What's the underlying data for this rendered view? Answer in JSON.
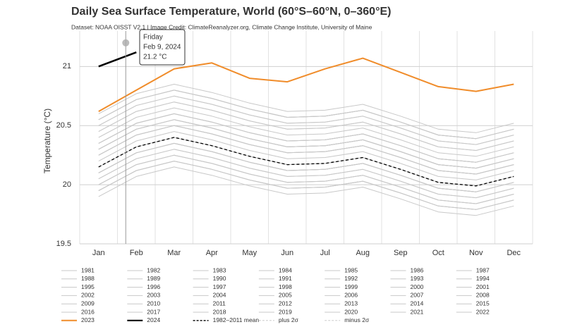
{
  "chart_data": {
    "type": "line",
    "title": "Daily Sea Surface Temperature, World (60°S–60°N, 0–360°E)",
    "subtitle": "Dataset: NOAA OISST V2.1 | Image Credit: ClimateReanalyzer.org, Climate Change Institute, University of Maine",
    "y_label": "Temperature (°C)",
    "categories": [
      "Jan",
      "Feb",
      "Mar",
      "Apr",
      "May",
      "Jun",
      "Jul",
      "Aug",
      "Sep",
      "Oct",
      "Nov",
      "Dec"
    ],
    "ylim": [
      19.5,
      21.3
    ],
    "yticks": [
      19.5,
      20,
      20.5,
      21
    ],
    "grid": true,
    "tooltip": {
      "weekday": "Friday",
      "date": "Feb 9, 2024",
      "value": 21.2,
      "value_label": "21.2 °C"
    },
    "series": [
      {
        "name": "1981",
        "color": "#c8c8c8",
        "values": [
          19.95,
          20.12,
          20.2,
          20.13,
          20.04,
          19.97,
          19.98,
          20.03,
          19.93,
          19.82,
          19.79,
          19.87
        ]
      },
      {
        "name": "1982",
        "color": "#c8c8c8",
        "values": [
          19.95,
          20.12,
          20.2,
          20.13,
          20.04,
          19.97,
          19.98,
          20.03,
          19.93,
          19.82,
          19.79,
          19.87
        ]
      },
      {
        "name": "1983",
        "color": "#c8c8c8",
        "values": [
          20.05,
          20.22,
          20.3,
          20.23,
          20.14,
          20.07,
          20.08,
          20.13,
          20.03,
          19.92,
          19.89,
          19.97
        ]
      },
      {
        "name": "1984",
        "color": "#c8c8c8",
        "values": [
          19.95,
          20.12,
          20.2,
          20.13,
          20.04,
          19.97,
          19.98,
          20.03,
          19.93,
          19.82,
          19.79,
          19.87
        ]
      },
      {
        "name": "1985",
        "color": "#c8c8c8",
        "values": [
          19.9,
          20.07,
          20.15,
          20.08,
          19.99,
          19.92,
          19.93,
          19.98,
          19.88,
          19.77,
          19.74,
          19.82
        ]
      },
      {
        "name": "1986",
        "color": "#c8c8c8",
        "values": [
          20.0,
          20.17,
          20.25,
          20.18,
          20.09,
          20.02,
          20.03,
          20.08,
          19.98,
          19.87,
          19.84,
          19.92
        ]
      },
      {
        "name": "1987",
        "color": "#c8c8c8",
        "values": [
          20.15,
          20.32,
          20.4,
          20.33,
          20.24,
          20.17,
          20.18,
          20.23,
          20.13,
          20.02,
          19.99,
          20.07
        ]
      },
      {
        "name": "1988",
        "color": "#c8c8c8",
        "values": [
          20.1,
          20.27,
          20.35,
          20.28,
          20.19,
          20.12,
          20.13,
          20.18,
          20.08,
          19.97,
          19.94,
          20.02
        ]
      },
      {
        "name": "1989",
        "color": "#c8c8c8",
        "values": [
          20.0,
          20.17,
          20.25,
          20.18,
          20.09,
          20.02,
          20.03,
          20.08,
          19.98,
          19.87,
          19.84,
          19.92
        ]
      },
      {
        "name": "1990",
        "color": "#c8c8c8",
        "values": [
          20.1,
          20.27,
          20.35,
          20.28,
          20.19,
          20.12,
          20.13,
          20.18,
          20.08,
          19.97,
          19.94,
          20.02
        ]
      },
      {
        "name": "1991",
        "color": "#c8c8c8",
        "values": [
          20.1,
          20.27,
          20.35,
          20.28,
          20.19,
          20.12,
          20.13,
          20.18,
          20.08,
          19.97,
          19.94,
          20.02
        ]
      },
      {
        "name": "1992",
        "color": "#c8c8c8",
        "values": [
          20.0,
          20.17,
          20.25,
          20.18,
          20.09,
          20.02,
          20.03,
          20.08,
          19.98,
          19.87,
          19.84,
          19.92
        ]
      },
      {
        "name": "1993",
        "color": "#c8c8c8",
        "values": [
          20.05,
          20.22,
          20.3,
          20.23,
          20.14,
          20.07,
          20.08,
          20.13,
          20.03,
          19.92,
          19.89,
          19.97
        ]
      },
      {
        "name": "1994",
        "color": "#c8c8c8",
        "values": [
          20.1,
          20.27,
          20.35,
          20.28,
          20.19,
          20.12,
          20.13,
          20.18,
          20.08,
          19.97,
          19.94,
          20.02
        ]
      },
      {
        "name": "1995",
        "color": "#c8c8c8",
        "values": [
          20.15,
          20.32,
          20.4,
          20.33,
          20.24,
          20.17,
          20.18,
          20.23,
          20.13,
          20.02,
          19.99,
          20.07
        ]
      },
      {
        "name": "1996",
        "color": "#c8c8c8",
        "values": [
          20.1,
          20.27,
          20.35,
          20.28,
          20.19,
          20.12,
          20.13,
          20.18,
          20.08,
          19.97,
          19.94,
          20.02
        ]
      },
      {
        "name": "1997",
        "color": "#c8c8c8",
        "values": [
          20.25,
          20.42,
          20.5,
          20.43,
          20.34,
          20.27,
          20.28,
          20.33,
          20.23,
          20.12,
          20.09,
          20.17
        ]
      },
      {
        "name": "1998",
        "color": "#c8c8c8",
        "values": [
          20.3,
          20.47,
          20.55,
          20.48,
          20.39,
          20.32,
          20.33,
          20.38,
          20.28,
          20.17,
          20.14,
          20.22
        ]
      },
      {
        "name": "1999",
        "color": "#c8c8c8",
        "values": [
          20.15,
          20.32,
          20.4,
          20.33,
          20.24,
          20.17,
          20.18,
          20.23,
          20.13,
          20.02,
          19.99,
          20.07
        ]
      },
      {
        "name": "2000",
        "color": "#c8c8c8",
        "values": [
          20.15,
          20.32,
          20.4,
          20.33,
          20.24,
          20.17,
          20.18,
          20.23,
          20.13,
          20.02,
          19.99,
          20.07
        ]
      },
      {
        "name": "2001",
        "color": "#c8c8c8",
        "values": [
          20.25,
          20.42,
          20.5,
          20.43,
          20.34,
          20.27,
          20.28,
          20.33,
          20.23,
          20.12,
          20.09,
          20.17
        ]
      },
      {
        "name": "2002",
        "color": "#c8c8c8",
        "values": [
          20.3,
          20.47,
          20.55,
          20.48,
          20.39,
          20.32,
          20.33,
          20.38,
          20.28,
          20.17,
          20.14,
          20.22
        ]
      },
      {
        "name": "2003",
        "color": "#c8c8c8",
        "values": [
          20.3,
          20.47,
          20.55,
          20.48,
          20.39,
          20.32,
          20.33,
          20.38,
          20.28,
          20.17,
          20.14,
          20.22
        ]
      },
      {
        "name": "2004",
        "color": "#c8c8c8",
        "values": [
          20.3,
          20.47,
          20.55,
          20.48,
          20.39,
          20.32,
          20.33,
          20.38,
          20.28,
          20.17,
          20.14,
          20.22
        ]
      },
      {
        "name": "2005",
        "color": "#c8c8c8",
        "values": [
          20.35,
          20.52,
          20.6,
          20.53,
          20.44,
          20.37,
          20.38,
          20.43,
          20.33,
          20.22,
          20.19,
          20.27
        ]
      },
      {
        "name": "2006",
        "color": "#c8c8c8",
        "values": [
          20.3,
          20.47,
          20.55,
          20.48,
          20.39,
          20.32,
          20.33,
          20.38,
          20.28,
          20.17,
          20.14,
          20.22
        ]
      },
      {
        "name": "2007",
        "color": "#c8c8c8",
        "values": [
          20.25,
          20.42,
          20.5,
          20.43,
          20.34,
          20.27,
          20.28,
          20.33,
          20.23,
          20.12,
          20.09,
          20.17
        ]
      },
      {
        "name": "2008",
        "color": "#c8c8c8",
        "values": [
          20.2,
          20.37,
          20.45,
          20.38,
          20.29,
          20.22,
          20.23,
          20.28,
          20.18,
          20.07,
          20.04,
          20.12
        ]
      },
      {
        "name": "2009",
        "color": "#c8c8c8",
        "values": [
          20.35,
          20.52,
          20.6,
          20.53,
          20.44,
          20.37,
          20.38,
          20.43,
          20.33,
          20.22,
          20.19,
          20.27
        ]
      },
      {
        "name": "2010",
        "color": "#c8c8c8",
        "values": [
          20.4,
          20.57,
          20.65,
          20.58,
          20.49,
          20.42,
          20.43,
          20.48,
          20.38,
          20.27,
          20.24,
          20.32
        ]
      },
      {
        "name": "2011",
        "color": "#c8c8c8",
        "values": [
          20.25,
          20.42,
          20.5,
          20.43,
          20.34,
          20.27,
          20.28,
          20.33,
          20.23,
          20.12,
          20.09,
          20.17
        ]
      },
      {
        "name": "2012",
        "color": "#c8c8c8",
        "values": [
          20.35,
          20.52,
          20.6,
          20.53,
          20.44,
          20.37,
          20.38,
          20.43,
          20.33,
          20.22,
          20.19,
          20.27
        ]
      },
      {
        "name": "2013",
        "color": "#c8c8c8",
        "values": [
          20.35,
          20.52,
          20.6,
          20.53,
          20.44,
          20.37,
          20.38,
          20.43,
          20.33,
          20.22,
          20.19,
          20.27
        ]
      },
      {
        "name": "2014",
        "color": "#c8c8c8",
        "values": [
          20.45,
          20.62,
          20.7,
          20.63,
          20.54,
          20.47,
          20.48,
          20.53,
          20.43,
          20.32,
          20.29,
          20.37
        ]
      },
      {
        "name": "2015",
        "color": "#c8c8c8",
        "values": [
          20.55,
          20.72,
          20.8,
          20.73,
          20.64,
          20.57,
          20.58,
          20.63,
          20.53,
          20.42,
          20.39,
          20.47
        ]
      },
      {
        "name": "2016",
        "color": "#c8c8c8",
        "values": [
          20.6,
          20.77,
          20.85,
          20.78,
          20.69,
          20.62,
          20.63,
          20.68,
          20.58,
          20.47,
          20.44,
          20.52
        ]
      },
      {
        "name": "2017",
        "color": "#c8c8c8",
        "values": [
          20.5,
          20.67,
          20.75,
          20.68,
          20.59,
          20.52,
          20.53,
          20.58,
          20.48,
          20.37,
          20.34,
          20.42
        ]
      },
      {
        "name": "2018",
        "color": "#c8c8c8",
        "values": [
          20.45,
          20.62,
          20.7,
          20.63,
          20.54,
          20.47,
          20.48,
          20.53,
          20.43,
          20.32,
          20.29,
          20.37
        ]
      },
      {
        "name": "2019",
        "color": "#c8c8c8",
        "values": [
          20.55,
          20.72,
          20.8,
          20.73,
          20.64,
          20.57,
          20.58,
          20.63,
          20.53,
          20.42,
          20.39,
          20.47
        ]
      },
      {
        "name": "2020",
        "color": "#c8c8c8",
        "values": [
          20.55,
          20.72,
          20.8,
          20.73,
          20.64,
          20.57,
          20.58,
          20.63,
          20.53,
          20.42,
          20.39,
          20.47
        ]
      },
      {
        "name": "2021",
        "color": "#c8c8c8",
        "values": [
          20.5,
          20.67,
          20.75,
          20.68,
          20.59,
          20.52,
          20.53,
          20.58,
          20.48,
          20.37,
          20.34,
          20.42
        ]
      },
      {
        "name": "2022",
        "color": "#c8c8c8",
        "values": [
          20.55,
          20.72,
          20.8,
          20.73,
          20.64,
          20.57,
          20.58,
          20.63,
          20.53,
          20.42,
          20.39,
          20.47
        ]
      },
      {
        "name": "2023",
        "color": "#f08c2a",
        "width": 2,
        "values": [
          20.62,
          20.8,
          20.98,
          21.03,
          20.9,
          20.87,
          20.98,
          21.07,
          20.95,
          20.83,
          20.79,
          20.85
        ]
      },
      {
        "name": "2024",
        "color": "#000000",
        "width": 2.5,
        "values": [
          21.0,
          21.12,
          null,
          null,
          null,
          null,
          null,
          null,
          null,
          null,
          null,
          null
        ]
      },
      {
        "name": "1982–2011 mean",
        "color": "#000000",
        "width": 1.3,
        "dash": true,
        "values": [
          20.15,
          20.32,
          20.4,
          20.33,
          20.24,
          20.17,
          20.18,
          20.23,
          20.13,
          20.02,
          19.99,
          20.07
        ]
      },
      {
        "name": "plus 2σ",
        "color": "#cccccc",
        "dash": true,
        "visible": false,
        "values": [
          null,
          null,
          null,
          null,
          null,
          null,
          null,
          null,
          null,
          null,
          null,
          null
        ]
      },
      {
        "name": "minus 2σ",
        "color": "#cccccc",
        "dash": true,
        "visible": false,
        "values": [
          null,
          null,
          null,
          null,
          null,
          null,
          null,
          null,
          null,
          null,
          null,
          null
        ]
      }
    ]
  }
}
